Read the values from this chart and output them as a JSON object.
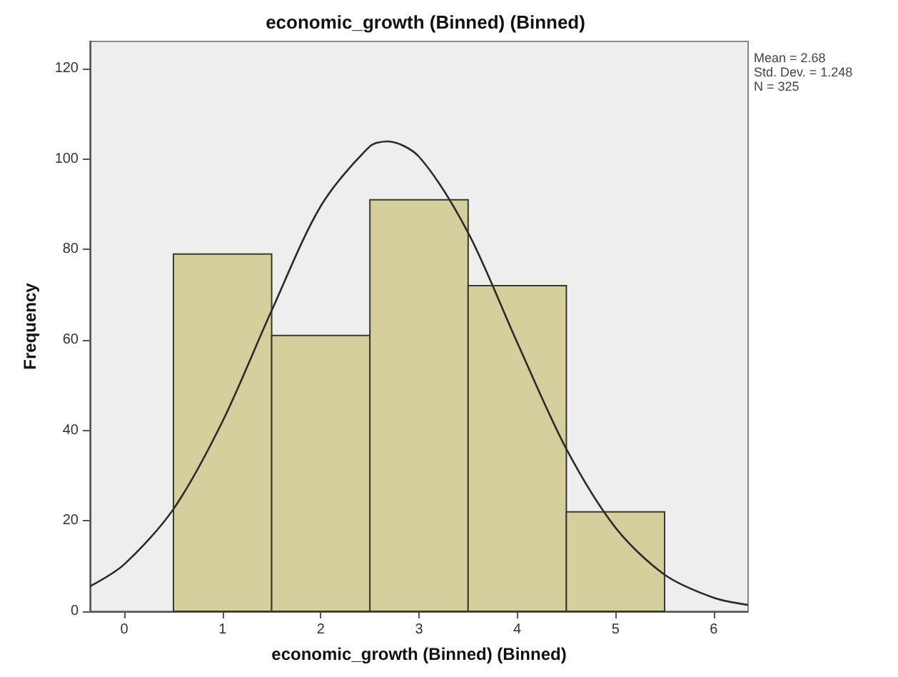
{
  "chart_data": {
    "type": "histogram",
    "title": "economic_growth (Binned) (Binned)",
    "xlabel": "economic_growth (Binned) (Binned)",
    "ylabel": "Frequency",
    "bins": [
      0.5,
      1.5,
      2.5,
      3.5,
      4.5,
      5.5
    ],
    "series": [
      {
        "color": "#d4cf9c",
        "values": [
          79,
          61,
          91,
          72,
          22
        ]
      },
      {
        "type": "line",
        "color": "#2b2b2b",
        "x": [
          -0.35,
          0,
          0.5,
          1,
          1.5,
          2,
          2.5,
          2.68,
          3,
          3.5,
          4,
          4.5,
          5,
          5.5,
          6,
          6.35
        ],
        "values": [
          5.5,
          10.4,
          22.6,
          42,
          66.5,
          89.6,
          102.8,
          103.9,
          100.5,
          83.7,
          59.4,
          35.9,
          18.5,
          8.1,
          3,
          1.4
        ]
      }
    ],
    "marker": "none",
    "grid": false,
    "xlim": [
      -0.35,
      6.35
    ],
    "xticks": [
      0,
      1,
      2,
      3,
      4,
      5,
      6
    ],
    "ylim": [
      0,
      126
    ],
    "yticks": [
      0,
      20,
      40,
      60,
      80,
      100,
      120
    ],
    "annotations": [
      "Mean = 2.68",
      "Std. Dev. = 1.248",
      "N = 325"
    ]
  }
}
